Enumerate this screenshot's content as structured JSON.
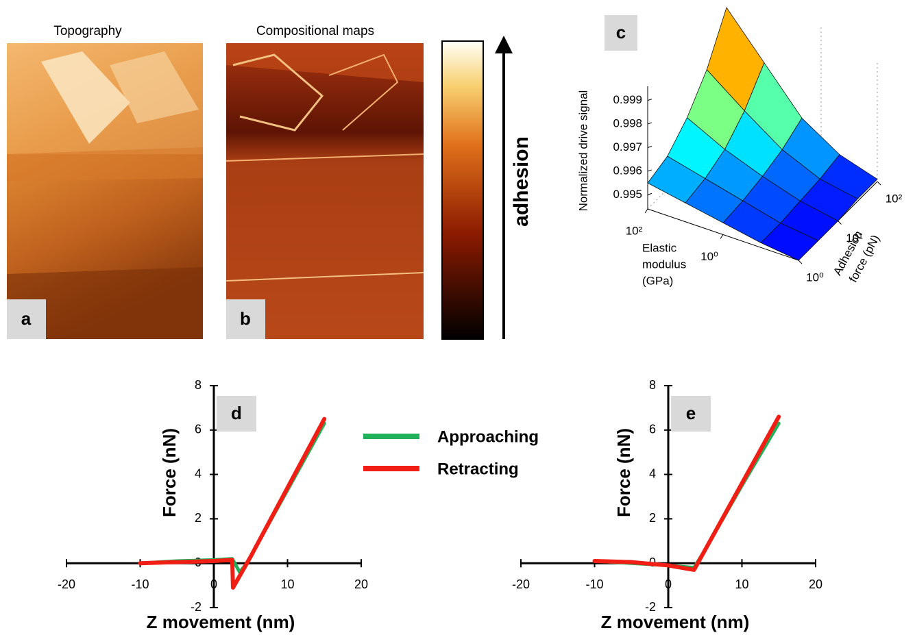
{
  "panels": {
    "a": {
      "title": "Topography",
      "label": "a"
    },
    "b": {
      "title": "Compositional maps",
      "label": "b"
    },
    "colorbar": {
      "label": "adhesion"
    }
  },
  "chart_data": [
    {
      "type": "surface",
      "label": "c",
      "zlabel": "Normalized drive signal",
      "xlabel": [
        "Elastic",
        "modulus",
        "(GPa)"
      ],
      "ylabel": [
        "Adhesion",
        "force (pN)"
      ],
      "x": [
        0.01,
        0.1,
        1,
        10,
        100
      ],
      "y": [
        1,
        3.16,
        10,
        31.6,
        100
      ],
      "z": [
        [
          0.9944,
          0.9944,
          0.9944,
          0.9945,
          0.9945
        ],
        [
          0.9946,
          0.9946,
          0.9947,
          0.9948,
          0.995
        ],
        [
          0.9949,
          0.995,
          0.9952,
          0.9955,
          0.996
        ],
        [
          0.9952,
          0.9954,
          0.9958,
          0.9966,
          0.9978
        ],
        [
          0.9955,
          0.9958,
          0.9966,
          0.9978,
          0.9996
        ]
      ],
      "xlim": [
        0.01,
        100
      ],
      "xticks": [
        {
          "value": 100,
          "label": "10²"
        },
        {
          "value": 1,
          "label": "10⁰"
        }
      ],
      "ylim": [
        1,
        100
      ],
      "yticks": [
        {
          "value": 1,
          "label": "10⁰"
        },
        {
          "value": 10,
          "label": "10¹"
        },
        {
          "value": 100,
          "label": "10²"
        }
      ],
      "zlim": [
        0.9944,
        0.9996
      ],
      "zticks": [
        0.995,
        0.996,
        0.997,
        0.998,
        0.999
      ],
      "log": true,
      "colormap": "jet"
    },
    {
      "type": "line",
      "label": "d",
      "xlabel": "Z movement (nm)",
      "ylabel": "Force (nN)",
      "xlim": [
        -20,
        20
      ],
      "xticks": [
        -20,
        -10,
        0,
        10,
        20
      ],
      "ylim": [
        -2,
        8
      ],
      "yticks": [
        -2,
        0,
        2,
        4,
        6,
        8
      ],
      "series": [
        {
          "name": "Approaching",
          "color": "#1fb25a",
          "x": [
            -10,
            -5,
            0,
            2.5,
            3.5,
            4.5,
            10,
            15
          ],
          "values": [
            0,
            0.1,
            0.15,
            0.2,
            -0.4,
            0,
            3.3,
            6.3
          ]
        },
        {
          "name": "Retracting",
          "color": "#f01e14",
          "x": [
            -10,
            -5,
            0,
            2.5,
            2.6,
            5,
            10,
            15
          ],
          "values": [
            0,
            0.05,
            0.1,
            0.15,
            -1.1,
            0.3,
            3.4,
            6.5
          ]
        }
      ]
    },
    {
      "type": "line",
      "label": "e",
      "xlabel": "Z movement (nm)",
      "ylabel": "Force (nN)",
      "xlim": [
        -20,
        20
      ],
      "xticks": [
        -20,
        -10,
        0,
        10,
        20
      ],
      "ylim": [
        -2,
        8
      ],
      "yticks": [
        -2,
        0,
        2,
        4,
        6,
        8
      ],
      "series": [
        {
          "color": "#1fb25a",
          "x": [
            -10,
            -5,
            0,
            3.5,
            5,
            10,
            15
          ],
          "values": [
            0.1,
            0,
            -0.1,
            -0.2,
            0.6,
            3.5,
            6.3
          ]
        },
        {
          "color": "#f01e14",
          "x": [
            -10,
            -5,
            0,
            3.5,
            10,
            15
          ],
          "values": [
            0.1,
            0.05,
            -0.1,
            -0.3,
            3.6,
            6.6
          ]
        }
      ]
    }
  ]
}
